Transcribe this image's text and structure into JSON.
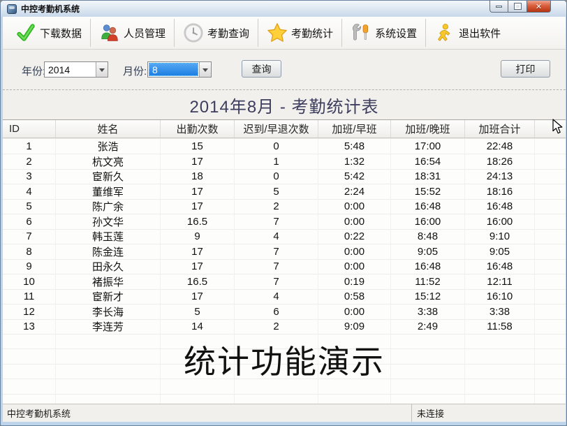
{
  "window": {
    "title": "中控考勤机系统",
    "controls": {
      "minimize": "minimize",
      "maximize": "maximize",
      "close": "✕"
    }
  },
  "toolbar": {
    "items": [
      {
        "icon": "checkmark-icon",
        "label": "下载数据"
      },
      {
        "icon": "people-icon",
        "label": "人员管理"
      },
      {
        "icon": "clock-icon",
        "label": "考勤查询"
      },
      {
        "icon": "star-icon",
        "label": "考勤统计"
      },
      {
        "icon": "tools-icon",
        "label": "系统设置"
      },
      {
        "icon": "runner-icon",
        "label": "退出软件"
      }
    ]
  },
  "filters": {
    "year_label": "年份:",
    "year_value": "2014",
    "month_label": "月份:",
    "month_value": "8",
    "query_label": "查询",
    "print_label": "打印"
  },
  "report": {
    "title": "2014年8月 - 考勤统计表",
    "watermark": "统计功能演示"
  },
  "table": {
    "columns": [
      "ID",
      "姓名",
      "出勤次数",
      "迟到/早退次数",
      "加班/早班",
      "加班/晚班",
      "加班合计"
    ],
    "rows": [
      [
        "1",
        "张浩",
        "15",
        "0",
        "5:48",
        "17:00",
        "22:48"
      ],
      [
        "2",
        "杭文亮",
        "17",
        "1",
        "1:32",
        "16:54",
        "18:26"
      ],
      [
        "3",
        "宦新久",
        "18",
        "0",
        "5:42",
        "18:31",
        "24:13"
      ],
      [
        "4",
        "董维军",
        "17",
        "5",
        "2:24",
        "15:52",
        "18:16"
      ],
      [
        "5",
        "陈广余",
        "17",
        "2",
        "0:00",
        "16:48",
        "16:48"
      ],
      [
        "6",
        "孙文华",
        "16.5",
        "7",
        "0:00",
        "16:00",
        "16:00"
      ],
      [
        "7",
        "韩玉莲",
        "9",
        "4",
        "0:22",
        "8:48",
        "9:10"
      ],
      [
        "8",
        "陈金连",
        "17",
        "7",
        "0:00",
        "9:05",
        "9:05"
      ],
      [
        "9",
        "田永久",
        "17",
        "7",
        "0:00",
        "16:48",
        "16:48"
      ],
      [
        "10",
        "褚振华",
        "16.5",
        "7",
        "0:19",
        "11:52",
        "12:11"
      ],
      [
        "11",
        "宦新才",
        "17",
        "4",
        "0:58",
        "15:12",
        "16:10"
      ],
      [
        "12",
        "李长海",
        "5",
        "6",
        "0:00",
        "3:38",
        "3:38"
      ],
      [
        "13",
        "李连芳",
        "14",
        "2",
        "9:09",
        "2:49",
        "11:58"
      ]
    ]
  },
  "statusbar": {
    "left": "中控考勤机系统",
    "right": "未连接"
  },
  "colors": {
    "month_highlight": "#1d7fe2",
    "report_title_text": "#3d3d5e",
    "close_button_red": "#c03a1d",
    "check_green": "#2fb81f",
    "star_yellow": "#ffd03a"
  }
}
